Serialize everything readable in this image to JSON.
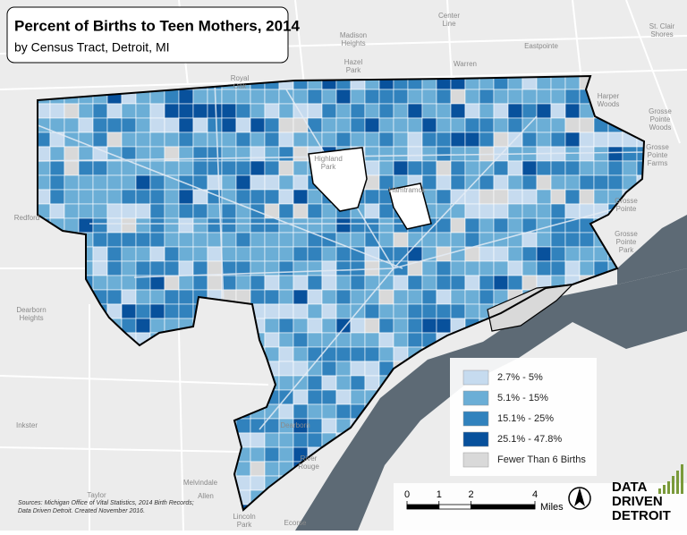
{
  "map": {
    "title": "Percent of Births to Teen Mothers, 2014",
    "subtitle": "by Census Tract, Detroit, MI",
    "legend": [
      {
        "label": "2.7% - 5%",
        "color": "#c6dbef"
      },
      {
        "label": "5.1% - 15%",
        "color": "#6baed6"
      },
      {
        "label": "15.1% - 25%",
        "color": "#3182bd"
      },
      {
        "label": "25.1% - 47.8%",
        "color": "#08519c"
      },
      {
        "label": "Fewer Than 6 Births",
        "color": "#d9d9d9"
      }
    ],
    "place_labels": [
      [
        "Royal",
        "Oak"
      ],
      [
        "Madison",
        "Heights"
      ],
      [
        "Hazel",
        "Park"
      ],
      [
        "Center",
        "Line"
      ],
      [
        "Eastpointe"
      ],
      [
        "Warren"
      ],
      [
        "St. Clair",
        "Shores"
      ],
      [
        "Harper",
        "Woods"
      ],
      [
        "Grosse",
        "Pointe",
        "Woods"
      ],
      [
        "Grosse",
        "Pointe",
        "Farms"
      ],
      [
        "Grosse",
        "Pointe"
      ],
      [
        "Grosse",
        "Pointe",
        "Park"
      ],
      [
        "Highland",
        "Park"
      ],
      [
        "Hamtramck"
      ],
      [
        "Redford"
      ],
      [
        "Dearborn",
        "Heights"
      ],
      [
        "Dearborn"
      ],
      [
        "Inkster"
      ],
      [
        "Melvindale"
      ],
      [
        "River",
        "Rouge"
      ],
      [
        "Allen"
      ],
      [
        "Taylor"
      ],
      [
        "Ecorse"
      ],
      [
        "Lincoln",
        "Park"
      ]
    ],
    "scale_bar": {
      "ticks": [
        0,
        1,
        2,
        4
      ],
      "unit": "Miles"
    },
    "sources": [
      "Sources: Michigan Office of Vital Statistics, 2014 Birth Records;",
      "Data Driven Detroit. Created November 2016."
    ],
    "logo": [
      "DATA",
      "DRIVEN",
      "DETROIT"
    ]
  }
}
